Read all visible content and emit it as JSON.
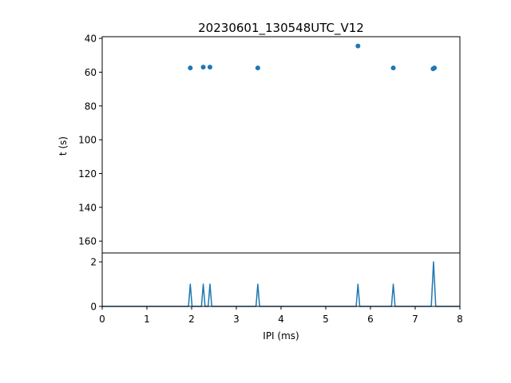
{
  "chart_data": [
    {
      "type": "scatter",
      "title": "20230601_130548UTC_V12",
      "ylabel": "t (s)",
      "xlim": [
        0,
        8
      ],
      "ylim": [
        167,
        39
      ],
      "y_inverted": true,
      "y_ticks": [
        40,
        60,
        80,
        100,
        120,
        140,
        160
      ],
      "color": "#1f77b4",
      "points": [
        {
          "x": 1.97,
          "y": 57.5
        },
        {
          "x": 2.26,
          "y": 57.0
        },
        {
          "x": 2.41,
          "y": 57.0
        },
        {
          "x": 3.48,
          "y": 57.5
        },
        {
          "x": 5.72,
          "y": 44.5
        },
        {
          "x": 6.51,
          "y": 57.5
        },
        {
          "x": 7.4,
          "y": 58.0
        },
        {
          "x": 7.43,
          "y": 57.5
        }
      ]
    },
    {
      "type": "line",
      "xlabel": "IPI (ms)",
      "xlim": [
        0,
        8
      ],
      "ylim": [
        0,
        2.4
      ],
      "x_ticks": [
        0,
        1,
        2,
        3,
        4,
        5,
        6,
        7,
        8
      ],
      "y_ticks": [
        0,
        2
      ],
      "color": "#1f77b4",
      "x": [
        0,
        1.93,
        1.97,
        2.01,
        2.22,
        2.26,
        2.3,
        2.37,
        2.41,
        2.45,
        3.44,
        3.48,
        3.52,
        5.68,
        5.72,
        5.76,
        6.47,
        6.51,
        6.55,
        7.36,
        7.41,
        7.46,
        8.0
      ],
      "y": [
        0,
        0,
        1,
        0,
        0,
        1,
        0,
        0,
        1,
        0,
        0,
        1,
        0,
        0,
        1,
        0,
        0,
        1,
        0,
        0,
        2,
        0,
        0
      ]
    }
  ]
}
